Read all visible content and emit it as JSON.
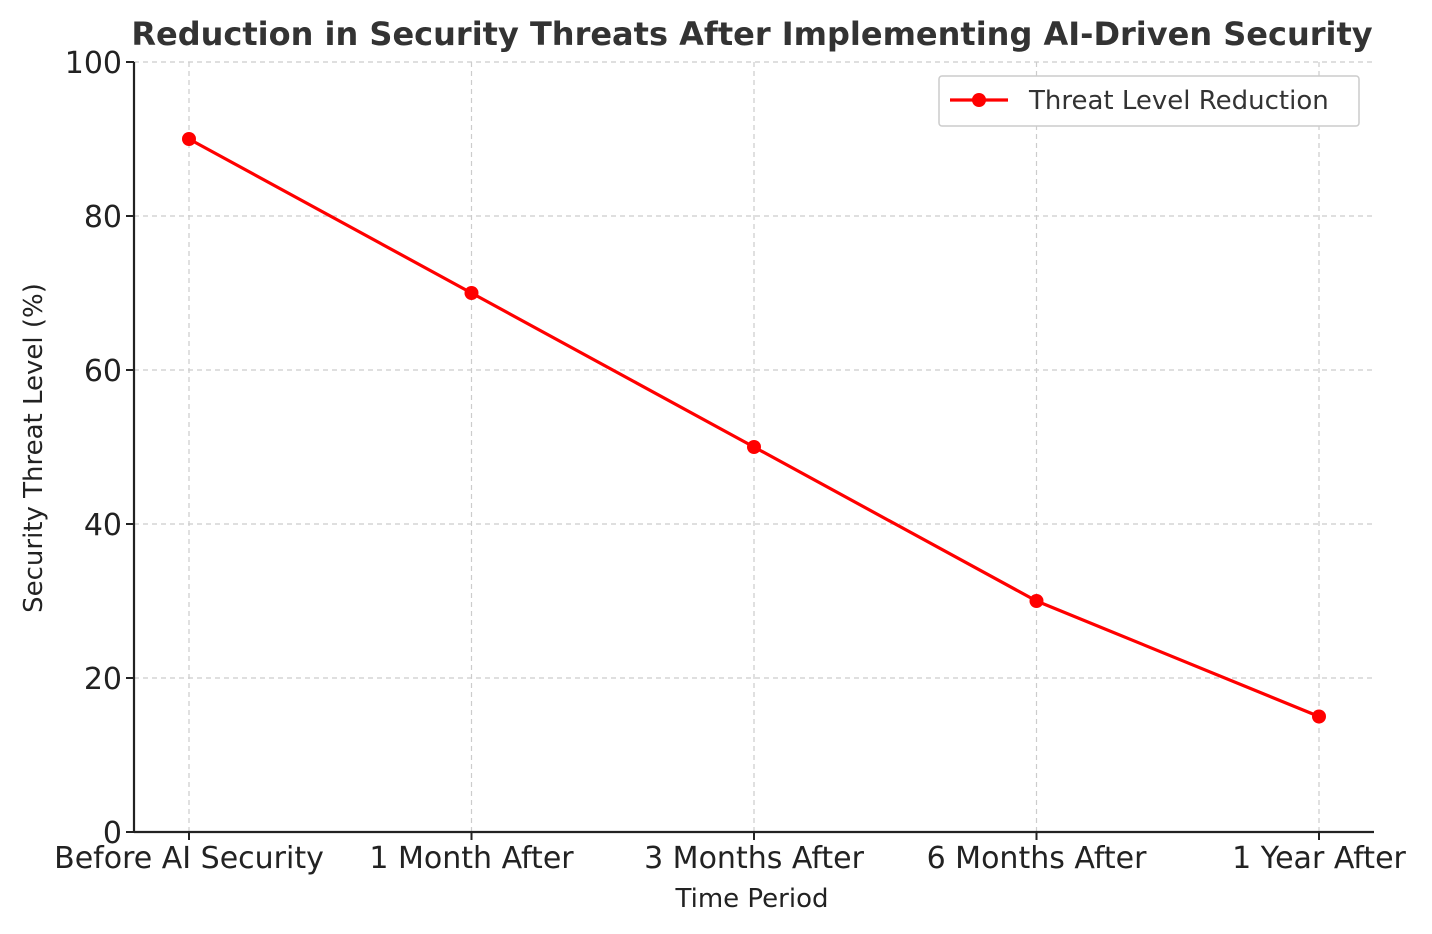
{
  "chart_data": {
    "type": "line",
    "title": "Reduction in Security Threats After Implementing AI-Driven Security",
    "xlabel": "Time Period",
    "ylabel": "Security Threat Level (%)",
    "categories": [
      "Before AI Security",
      "1 Month After",
      "3 Months After",
      "6 Months After",
      "1 Year After"
    ],
    "series": [
      {
        "name": "Threat Level Reduction",
        "values": [
          90,
          70,
          50,
          30,
          15
        ],
        "color": "#ff0000",
        "marker": "circle"
      }
    ],
    "ylim": [
      0,
      100
    ],
    "yticks": [
      0,
      20,
      40,
      60,
      80,
      100
    ],
    "grid": true,
    "legend_position": "top-right"
  }
}
